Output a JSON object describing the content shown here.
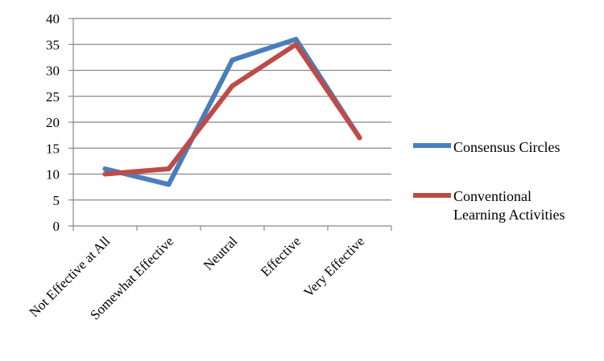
{
  "chart_data": {
    "type": "line",
    "title": "",
    "xlabel": "",
    "ylabel": "",
    "categories": [
      "Not Effective at All",
      "Somewhat Effective",
      "Neutral",
      "Effective",
      "Very Effective"
    ],
    "ylim": [
      0,
      40
    ],
    "yticks": [
      0,
      5,
      10,
      15,
      20,
      25,
      30,
      35,
      40
    ],
    "grid": true,
    "legend_position": "right",
    "series": [
      {
        "name": "Consensus Circles",
        "color": "#4a7ebb",
        "values": [
          11,
          8,
          32,
          36,
          17
        ]
      },
      {
        "name": "Conventional Learning Activities",
        "name_lines": [
          "Conventional",
          "Learning Activities"
        ],
        "color": "#be4b48",
        "values": [
          10,
          11,
          27,
          35,
          17
        ]
      }
    ]
  }
}
